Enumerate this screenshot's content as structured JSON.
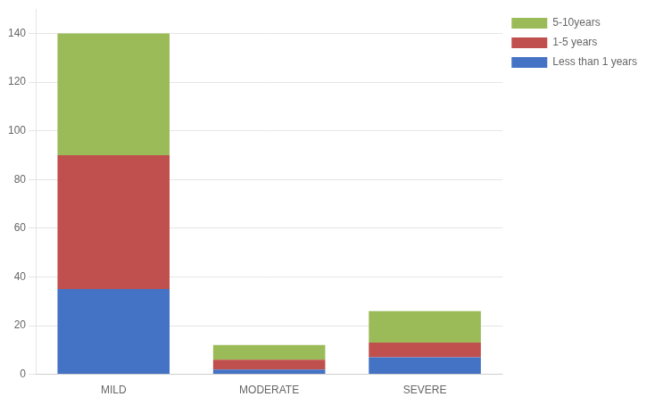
{
  "chart_data": {
    "type": "bar",
    "stacked": true,
    "categories": [
      "MILD",
      "MODERATE",
      "SEVERE"
    ],
    "series": [
      {
        "name": "Less than 1 years",
        "color": "#4472C4",
        "values": [
          35,
          2,
          7
        ]
      },
      {
        "name": "1-5 years",
        "color": "#C0504D",
        "values": [
          55,
          4,
          6
        ]
      },
      {
        "name": "5-10years",
        "color": "#9BBB59",
        "values": [
          50,
          6,
          13
        ]
      }
    ],
    "ylim": [
      0,
      150
    ],
    "yticks": [
      0,
      20,
      40,
      60,
      80,
      100,
      120,
      140
    ],
    "grid": true,
    "legend": "upper right"
  }
}
